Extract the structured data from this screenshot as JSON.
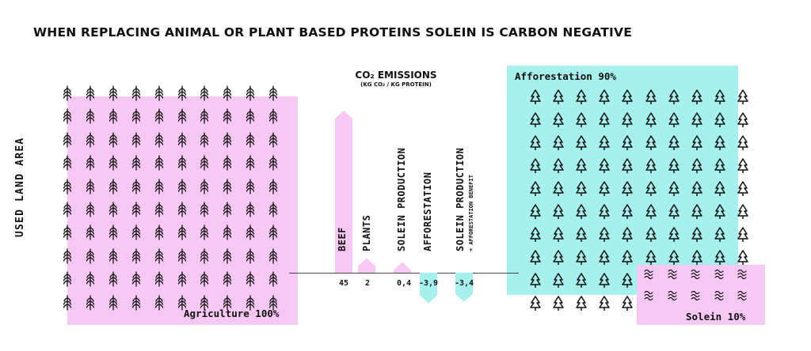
{
  "title": "WHEN REPLACING ANIMAL OR PLANT BASED PROTEINS SOLEIN IS CARBON NEGATIVE",
  "y_axis_label": "USED LAND AREA",
  "emissions": {
    "title": "CO₂ EMISSIONS",
    "subtitle": "(KG CO₂ / KG PROTEIN)"
  },
  "areas": {
    "agriculture_label": "Agriculture 100%",
    "afforestation_label": "Afforestation 90%",
    "solein_label": "Solein 10%"
  },
  "colors": {
    "pink": "#f8c8f4",
    "cyan": "#a6f0ee",
    "ink": "#111111"
  },
  "icons": {
    "agriculture": "wheat-icon",
    "afforestation": "tree-icon",
    "solein": "microbe-icon"
  },
  "chart_data": {
    "type": "bar",
    "categories": [
      "BEEF",
      "PLANTS",
      "SOLEIN PRODUCTION",
      "AFFORESTATION",
      "SOLEIN PRODUCTION"
    ],
    "category_notes": [
      "",
      "",
      "",
      "",
      "+ AFFORESTATION BENEFIT"
    ],
    "value_labels": [
      "45",
      "2",
      "0,4",
      "-3,9",
      "-3,4"
    ],
    "values": [
      45,
      2,
      0.4,
      -3.9,
      -3.4
    ],
    "bar_colors": [
      "#f8c8f4",
      "#f8c8f4",
      "#f8c8f4",
      "#a6f0ee",
      "#a6f0ee"
    ]
  }
}
